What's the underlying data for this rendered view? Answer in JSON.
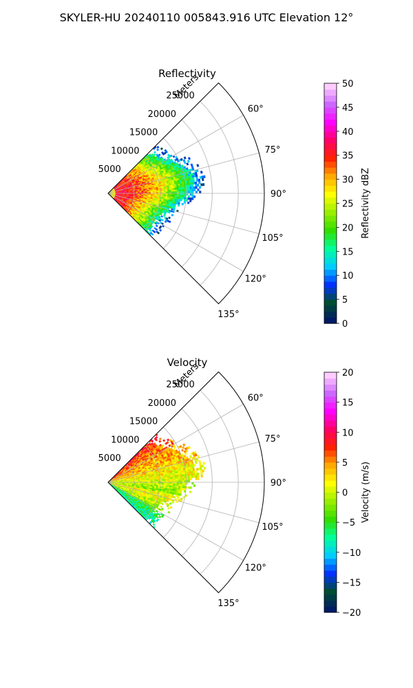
{
  "figure": {
    "title": "SKYLER-HU  20240110  005843.916 UTC Elevation 12°"
  },
  "chart_data": [
    {
      "type": "heatmap",
      "title": "Reflectivity",
      "radial_axis_label": "Meters",
      "radial_ticks": [
        "5000",
        "10000",
        "15000",
        "20000",
        "25000"
      ],
      "azimuth_ticks": [
        "60°",
        "75°",
        "90°",
        "105°",
        "120°",
        "135°"
      ],
      "azimuth_range": [
        45,
        135
      ],
      "range_max": 30000,
      "colorbar": {
        "label": "Reflectivity dBZ",
        "ticks": [
          "0",
          "5",
          "10",
          "15",
          "20",
          "25",
          "30",
          "35",
          "40",
          "45",
          "50"
        ],
        "range": [
          0,
          50
        ],
        "colormap": [
          "#001a66",
          "#004d33",
          "#0033ff",
          "#00ccff",
          "#00ff99",
          "#33dd00",
          "#99ee00",
          "#ffff00",
          "#ffaa00",
          "#ff2200",
          "#ff0066",
          "#ff00ff",
          "#cc66ff",
          "#ffccff"
        ]
      }
    },
    {
      "type": "heatmap",
      "title": "Velocity",
      "radial_axis_label": "Meters",
      "radial_ticks": [
        "5000",
        "10000",
        "15000",
        "20000",
        "25000"
      ],
      "azimuth_ticks": [
        "60°",
        "75°",
        "90°",
        "105°",
        "120°",
        "135°"
      ],
      "azimuth_range": [
        45,
        135
      ],
      "range_max": 30000,
      "colorbar": {
        "label": "Velocity (m/s)",
        "ticks": [
          "−20",
          "−15",
          "−10",
          "−5",
          "0",
          "5",
          "10",
          "15",
          "20"
        ],
        "range": [
          -20,
          20
        ],
        "colormap": [
          "#001a66",
          "#004d33",
          "#0033ff",
          "#00ccff",
          "#00ff99",
          "#33dd00",
          "#99ee00",
          "#ffff00",
          "#ffaa00",
          "#ff2200",
          "#ff0066",
          "#ff00ff",
          "#cc66ff",
          "#ffccff"
        ]
      }
    }
  ]
}
